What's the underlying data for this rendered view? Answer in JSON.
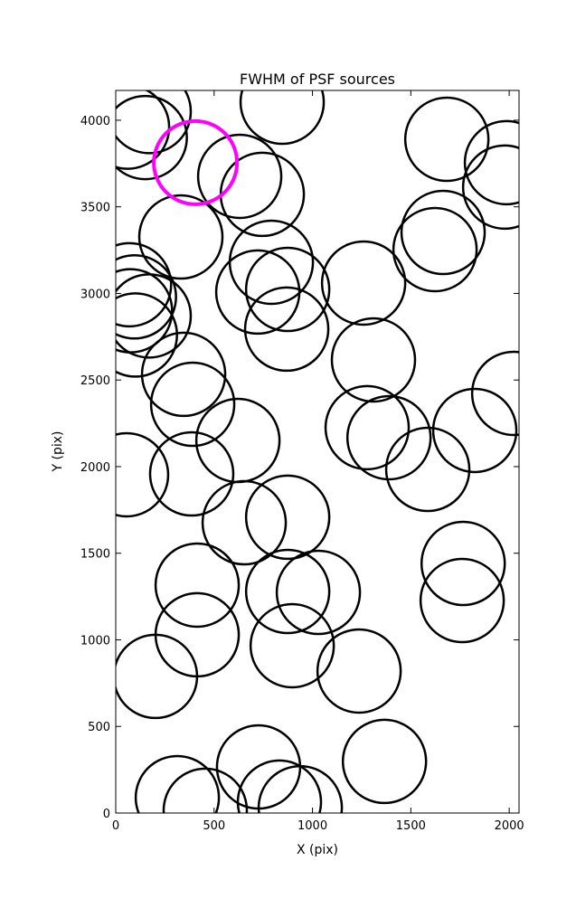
{
  "chart_data": {
    "type": "scatter",
    "title": "FWHM of PSF sources",
    "x_label": "X (pix)",
    "y_label": "Y (pix)",
    "xlim": [
      0,
      2050
    ],
    "ylim": [
      0,
      4172
    ],
    "xticks": [
      0,
      500,
      1000,
      1500,
      2000
    ],
    "yticks": [
      0,
      500,
      1000,
      1500,
      2000,
      2500,
      3000,
      3500,
      4000
    ],
    "marker": "open-circle",
    "series": [
      {
        "color": "#000000",
        "x": [
          60,
          170,
          150,
          846,
          630,
          745,
          331,
          791,
          722,
          874,
          869,
          1260,
          1310,
          70,
          95,
          170,
          100,
          75,
          1683,
          1986,
          1977,
          1664,
          1623,
          2023,
          1825,
          1586,
          1389,
          1278,
          345,
          391,
          621,
          386,
          55,
          874,
          653,
          414,
          874,
          1030,
          414,
          897,
          1237,
          202,
          1766,
          1761,
          1366,
          726,
          313,
          455,
          832,
          938
        ],
        "y": [
          3960,
          4050,
          3900,
          4104,
          3676,
          3572,
          3326,
          3180,
          3008,
          3023,
          2794,
          3060,
          2616,
          3050,
          2980,
          2870,
          2760,
          2900,
          3890,
          3755,
          3614,
          3352,
          3253,
          2423,
          2209,
          1984,
          2167,
          2225,
          2533,
          2360,
          2151,
          1958,
          1953,
          1708,
          1676,
          1316,
          1279,
          1274,
          1029,
          966,
          820,
          789,
          1441,
          1227,
          298,
          266,
          89,
          16,
          63,
          31
        ]
      },
      {
        "color": "#ff00ff",
        "x": [
          405
        ],
        "y": [
          3755
        ]
      }
    ]
  }
}
